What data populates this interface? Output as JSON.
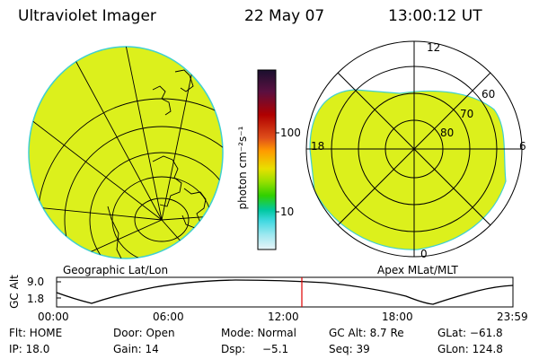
{
  "header": {
    "instrument": "Ultraviolet Imager",
    "date": "22 May 07",
    "time": "13:00:12 UT"
  },
  "colorbar": {
    "unit_label": "photon cm⁻²s⁻¹",
    "ticks": [
      "100",
      "10"
    ],
    "colors": [
      "#1a0f2e",
      "#5a1040",
      "#b00000",
      "#e0501a",
      "#ff9a00",
      "#e8e000",
      "#9ae000",
      "#30d000",
      "#00c8a0",
      "#40d8e0",
      "#a0e8f0",
      "#e8f4f8"
    ]
  },
  "left_panel": {
    "label": "Geographic Lat/Lon",
    "fill_color": "#dcf01c"
  },
  "right_panel": {
    "label": "Apex MLat/MLT",
    "fill_color": "#dcf01c",
    "mlt_labels": {
      "top": "12",
      "left": "18",
      "right": "6",
      "bottom": "0"
    },
    "lat_labels": [
      "60",
      "70",
      "80"
    ]
  },
  "altitude_plot": {
    "ylabel": "GC Alt",
    "yticks": [
      "9.0",
      "1.8"
    ],
    "xticks": [
      "00:00",
      "06:00",
      "12:00",
      "18:00",
      "23:59"
    ],
    "marker_color": "#e00000"
  },
  "info": {
    "row1": {
      "flt": "Flt: HOME",
      "door": "Door: Open",
      "mode": "Mode: Normal",
      "gc_alt": "GC Alt: 8.7 Re",
      "glat": "GLat: −61.8"
    },
    "row2": {
      "ip": "IP: 18.0",
      "gain": "Gain: 14",
      "dsp_label": "Dsp:",
      "dsp_value": "−5.1",
      "seq": "Seq: 39",
      "glon": "GLon: 124.8"
    }
  }
}
